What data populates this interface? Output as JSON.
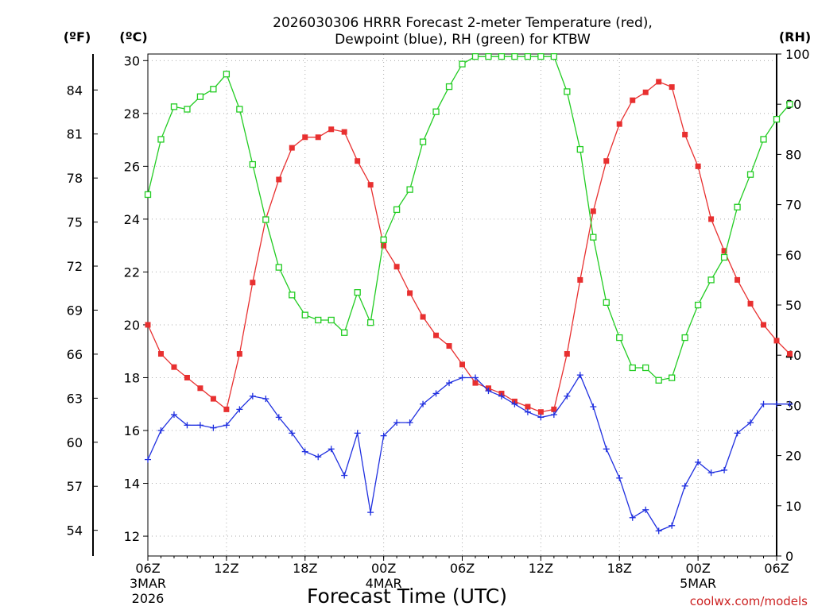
{
  "chart_data": {
    "type": "line",
    "title_line1": "2026030306 HRRR Forecast 2-meter Temperature (red),",
    "title_line2": "Dewpoint (blue), RH (green) for KTBW",
    "xlabel": "Forecast Time (UTC)",
    "credit": "coolwx.com/models",
    "axis_units": {
      "fahrenheit": "(ºF)",
      "celsius": "(ºC)",
      "rh": "(RH)"
    },
    "x_range_hours": [
      0,
      48
    ],
    "celsius_range": [
      11.25,
      30.25
    ],
    "rh_range": [
      0,
      100
    ],
    "celsius_ticks": [
      12,
      14,
      16,
      18,
      20,
      22,
      24,
      26,
      28,
      30
    ],
    "fahrenheit_ticks": [
      54,
      57,
      60,
      63,
      66,
      69,
      72,
      75,
      78,
      81,
      84
    ],
    "rh_ticks": [
      0,
      10,
      20,
      30,
      40,
      50,
      60,
      70,
      80,
      90,
      100
    ],
    "x_ticks": [
      {
        "hour": 0,
        "label": "06Z",
        "sub1": "3MAR",
        "sub2": "2026"
      },
      {
        "hour": 6,
        "label": "12Z"
      },
      {
        "hour": 12,
        "label": "18Z"
      },
      {
        "hour": 18,
        "label": "00Z",
        "sub1": "4MAR"
      },
      {
        "hour": 24,
        "label": "06Z"
      },
      {
        "hour": 30,
        "label": "12Z"
      },
      {
        "hour": 36,
        "label": "18Z"
      },
      {
        "hour": 42,
        "label": "00Z",
        "sub1": "5MAR"
      },
      {
        "hour": 48,
        "label": "06Z"
      }
    ],
    "series": [
      {
        "name": "Temperature",
        "unit": "C",
        "color": "#e83030",
        "marker": "filled-square",
        "values": [
          20.0,
          18.9,
          18.4,
          18.0,
          17.6,
          17.2,
          16.8,
          18.9,
          21.6,
          24.0,
          25.5,
          26.7,
          27.1,
          27.1,
          27.4,
          27.3,
          26.2,
          25.3,
          23.0,
          22.2,
          21.2,
          20.3,
          19.6,
          19.2,
          18.5,
          17.8,
          17.6,
          17.4,
          17.1,
          16.9,
          16.7,
          16.8,
          18.9,
          21.7,
          24.3,
          26.2,
          27.6,
          28.5,
          28.8,
          29.2,
          29.0,
          27.2,
          26.0,
          24.0,
          22.8,
          21.7,
          20.8,
          20.0,
          19.4,
          18.9
        ]
      },
      {
        "name": "Dewpoint",
        "unit": "C",
        "color": "#2030e0",
        "marker": "plus",
        "values": [
          14.9,
          16.0,
          16.6,
          16.2,
          16.2,
          16.1,
          16.2,
          16.8,
          17.3,
          17.2,
          16.5,
          15.9,
          15.2,
          15.0,
          15.3,
          14.3,
          15.9,
          12.9,
          15.8,
          16.3,
          16.3,
          17.0,
          17.4,
          17.8,
          18.0,
          18.0,
          17.5,
          17.3,
          17.0,
          16.7,
          16.5,
          16.6,
          17.3,
          18.1,
          16.9,
          15.3,
          14.2,
          12.7,
          13.0,
          12.2,
          12.4,
          13.9,
          14.8,
          14.4,
          14.5,
          15.9,
          16.3,
          17.0,
          17.0,
          17.0
        ]
      },
      {
        "name": "Relative Humidity",
        "unit": "%",
        "color": "#22cc22",
        "marker": "open-square",
        "values": [
          72.0,
          83.0,
          89.5,
          89.0,
          91.5,
          93.0,
          96.0,
          89.0,
          78.0,
          67.0,
          57.5,
          52.0,
          48.0,
          47.0,
          47.0,
          44.5,
          52.5,
          46.5,
          63.0,
          69.0,
          73.0,
          82.5,
          88.5,
          93.5,
          98.0,
          99.5,
          99.5,
          99.5,
          99.5,
          99.5,
          99.5,
          99.5,
          92.5,
          81.0,
          63.5,
          50.5,
          43.5,
          37.5,
          37.5,
          35.0,
          35.5,
          43.5,
          50.0,
          55.0,
          59.5,
          69.5,
          76.0,
          83.0,
          87.0,
          90.0
        ]
      }
    ]
  }
}
